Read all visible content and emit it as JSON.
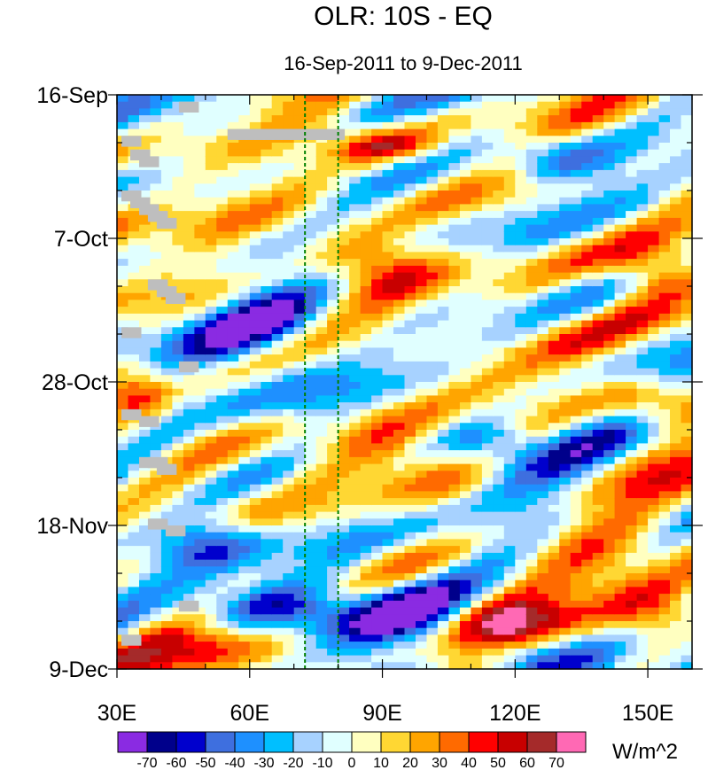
{
  "chart_data": {
    "type": "heatmap",
    "title": "OLR: 10S - EQ",
    "subtitle": "16-Sep-2011 to 9-Dec-2011",
    "x_axis": {
      "range": [
        30,
        160
      ],
      "units": "degrees East longitude",
      "major_ticks": [
        30,
        60,
        90,
        120,
        150
      ],
      "tick_labels": [
        "30E",
        "60E",
        "90E",
        "120E",
        "150E"
      ],
      "minor_step": 10
    },
    "y_axis": {
      "range_days": [
        0,
        84
      ],
      "reversed": true,
      "major_ticks_days": [
        0,
        21,
        42,
        63,
        84
      ],
      "tick_labels": [
        "16-Sep",
        "7-Oct",
        "28-Oct",
        "18-Nov",
        "9-Dec"
      ],
      "minor_step_days": 7
    },
    "reference_lines_lon": [
      72.5,
      80
    ],
    "colorbar": {
      "units": "W/m^2",
      "levels": [
        -70,
        -60,
        -50,
        -40,
        -30,
        -20,
        -10,
        0,
        10,
        20,
        30,
        40,
        50,
        60,
        70
      ],
      "tick_labels": [
        "-70",
        "-60",
        "-50",
        "-40",
        "-30",
        "-20",
        "-10",
        "0",
        "10",
        "20",
        "30",
        "40",
        "50",
        "60",
        "70"
      ],
      "colors": [
        "#8a2be2",
        "#00008b",
        "#0000cd",
        "#3e6fdf",
        "#1e90ff",
        "#00bfff",
        "#a7d2ff",
        "#e0ffff",
        "#ffffc0",
        "#ffd733",
        "#ffa500",
        "#ff6a00",
        "#ff0000",
        "#c80000",
        "#a52a2a",
        "#ff69b4"
      ]
    },
    "missing_color": "#bebebe",
    "anomaly_features": [
      {
        "lon": [
          80,
          100
        ],
        "day": [
          6,
          9
        ],
        "value": 45
      },
      {
        "lon": [
          75,
          100
        ],
        "day": [
          21,
          28
        ],
        "value": 50
      },
      {
        "lon": [
          120,
          140
        ],
        "day": [
          7,
          12
        ],
        "value": -40
      },
      {
        "lon": [
          145,
          160
        ],
        "day": [
          23,
          30
        ],
        "value": 40
      },
      {
        "lon": [
          50,
          80
        ],
        "day": [
          30,
          45
        ],
        "value": -40
      },
      {
        "lon": [
          30,
          40
        ],
        "day": [
          42,
          47
        ],
        "value": 40
      },
      {
        "lon": [
          140,
          160
        ],
        "day": [
          42,
          48
        ],
        "value": 45
      },
      {
        "lon": [
          105,
          125
        ],
        "day": [
          48,
          54
        ],
        "value": -40
      },
      {
        "lon": [
          80,
          110
        ],
        "day": [
          50,
          58
        ],
        "value": 30
      },
      {
        "lon": [
          40,
          60
        ],
        "day": [
          63,
          68
        ],
        "value": -45
      },
      {
        "lon": [
          50,
          80
        ],
        "day": [
          72,
          78
        ],
        "value": -60
      },
      {
        "lon": [
          75,
          105
        ],
        "day": [
          70,
          80
        ],
        "value": -45
      },
      {
        "lon": [
          105,
          125
        ],
        "day": [
          72,
          80
        ],
        "value": 40
      },
      {
        "lon": [
          140,
          160
        ],
        "day": [
          70,
          80
        ],
        "value": 45
      },
      {
        "lon": [
          35,
          70
        ],
        "day": [
          78,
          84
        ],
        "value": 30
      },
      {
        "lon": [
          110,
          130
        ],
        "day": [
          80,
          84
        ],
        "value": -40
      }
    ]
  }
}
